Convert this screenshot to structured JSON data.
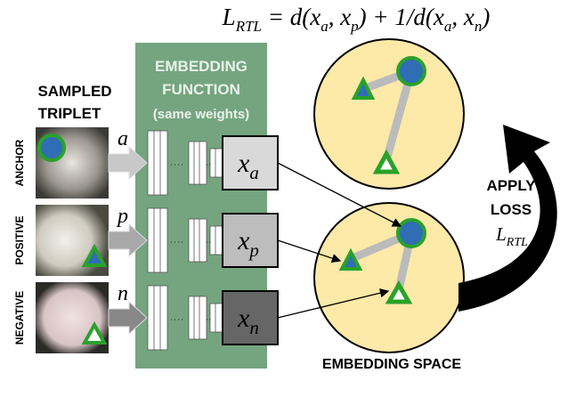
{
  "formula": [
    {
      "text": "L"
    },
    {
      "sub": "RTL"
    },
    {
      "text": " = d(x"
    },
    {
      "sub": "a"
    },
    {
      "text": ", x"
    },
    {
      "sub": "p"
    },
    {
      "text": ") + 1/d(x"
    },
    {
      "sub": "a"
    },
    {
      "text": ", x"
    },
    {
      "sub": "n"
    },
    {
      "text": ")"
    }
  ],
  "triplet_title": [
    "SAMPLED",
    "TRIPLET"
  ],
  "samples": [
    {
      "label": "ANCHOR",
      "symbol": "a"
    },
    {
      "label": "POSITIVE",
      "symbol": "p"
    },
    {
      "label": "NEGATIVE",
      "symbol": "n"
    }
  ],
  "embedding_function": {
    "title": [
      "EMBEDDING",
      "FUNCTION"
    ],
    "note": "(same weights)"
  },
  "embeddings": [
    {
      "base": "x",
      "sub": "a"
    },
    {
      "base": "x",
      "sub": "p"
    },
    {
      "base": "x",
      "sub": "n"
    }
  ],
  "loss": {
    "title": [
      "APPLY",
      "LOSS"
    ],
    "symbol": {
      "base": "L",
      "sub": "RTL"
    }
  },
  "space_label": "EMBEDDING SPACE"
}
